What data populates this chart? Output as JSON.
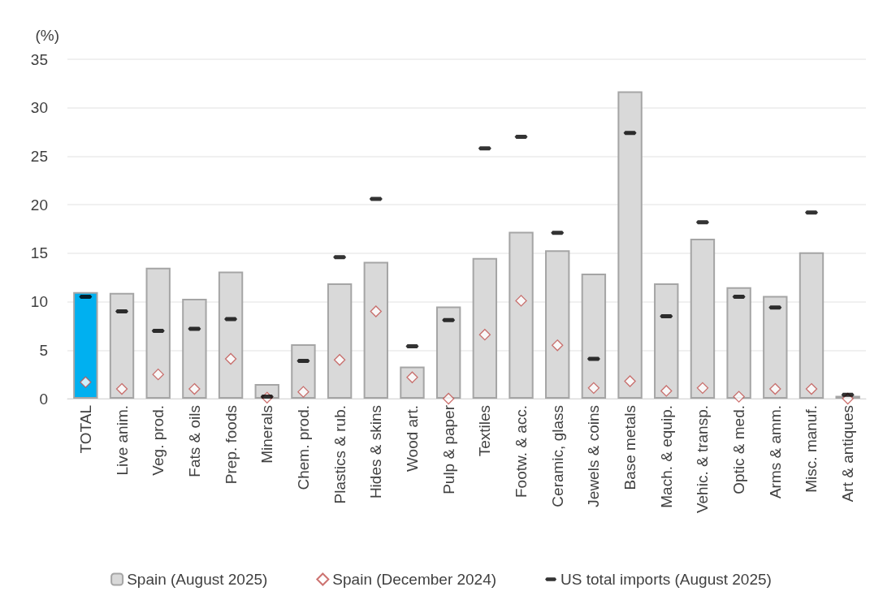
{
  "chart_data": {
    "type": "bar",
    "ylabel": "(%)",
    "categories": [
      "TOTAL",
      "Live anim.",
      "Veg. prod.",
      "Fats & oils",
      "Prep. foods",
      "Minerals",
      "Chem. prod.",
      "Plastics & rub.",
      "Hides & skins",
      "Wood art.",
      "Pulp & paper",
      "Textiles",
      "Footw. & acc.",
      "Ceramic, glass",
      "Jewels & coins",
      "Base metals",
      "Mach. & equip.",
      "Vehic. & transp.",
      "Optic & med.",
      "Arms & amm.",
      "Misc. manuf.",
      "Art & antiques"
    ],
    "series": [
      {
        "name": "Spain (August 2025)",
        "color": "#d9d9d9",
        "colors": [
          "#00b0f0",
          "#d9d9d9",
          "#d9d9d9",
          "#d9d9d9",
          "#d9d9d9",
          "#d9d9d9",
          "#d9d9d9",
          "#d9d9d9",
          "#d9d9d9",
          "#d9d9d9",
          "#d9d9d9",
          "#d9d9d9",
          "#d9d9d9",
          "#d9d9d9",
          "#d9d9d9",
          "#d9d9d9",
          "#d9d9d9",
          "#d9d9d9",
          "#d9d9d9",
          "#d9d9d9",
          "#d9d9d9",
          "#d9d9d9"
        ],
        "values": [
          11.0,
          10.9,
          13.5,
          10.3,
          13.1,
          1.5,
          5.6,
          11.9,
          14.1,
          3.3,
          9.5,
          14.5,
          17.2,
          15.3,
          12.9,
          31.7,
          11.9,
          16.5,
          11.5,
          10.6,
          15.1,
          0.3
        ]
      },
      {
        "name": "Spain (December 2024)",
        "type": "scatter",
        "marker": "diamond",
        "color": "#c0504d",
        "values": [
          1.7,
          1.0,
          2.5,
          1.0,
          4.1,
          0.1,
          0.7,
          4.0,
          9.0,
          2.2,
          0.0,
          6.6,
          10.1,
          5.5,
          1.1,
          1.8,
          0.8,
          1.1,
          0.2,
          1.0,
          1.0,
          0.0
        ]
      },
      {
        "name": "US total imports (August 2025)",
        "type": "scatter",
        "color": "#000000",
        "values": [
          10.5,
          9.0,
          7.0,
          7.2,
          8.2,
          0.2,
          3.9,
          14.6,
          20.6,
          5.4,
          8.1,
          25.8,
          27.0,
          17.1,
          4.1,
          27.4,
          8.5,
          18.2,
          10.5,
          9.4,
          19.2,
          0.4
        ]
      }
    ],
    "ylim": [
      0,
      35
    ],
    "yticks": [
      0,
      5,
      10,
      15,
      20,
      25,
      30,
      35
    ],
    "grid": "y",
    "legend": "bottom"
  }
}
